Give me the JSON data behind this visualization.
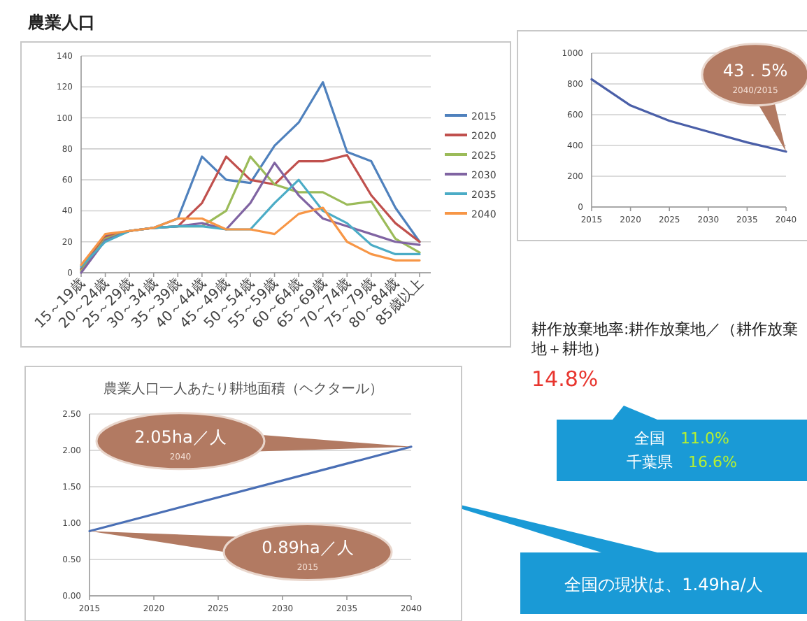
{
  "chart_data": [
    {
      "type": "line",
      "title": "農業人口",
      "categories": [
        "15～19歳",
        "20～24歳",
        "25～29歳",
        "30～34歳",
        "35～39歳",
        "40～44歳",
        "45～49歳",
        "50～54歳",
        "55～59歳",
        "60～64歳",
        "65～69歳",
        "70～74歳",
        "75～79歳",
        "80～84歳",
        "85歳以上"
      ],
      "series": [
        {
          "name": "2015",
          "color": "#4f81bd",
          "values": [
            3,
            24,
            27,
            29,
            35,
            75,
            60,
            58,
            82,
            97,
            123,
            78,
            72,
            42,
            20
          ]
        },
        {
          "name": "2020",
          "color": "#c0504d",
          "values": [
            2,
            23,
            27,
            29,
            30,
            45,
            75,
            60,
            57,
            72,
            72,
            76,
            50,
            32,
            20
          ]
        },
        {
          "name": "2025",
          "color": "#9bbb59",
          "values": [
            1,
            22,
            27,
            29,
            30,
            30,
            40,
            75,
            57,
            52,
            52,
            44,
            46,
            22,
            13
          ]
        },
        {
          "name": "2030",
          "color": "#8064a2",
          "values": [
            0,
            21,
            27,
            29,
            30,
            32,
            28,
            45,
            71,
            50,
            35,
            30,
            25,
            20,
            18
          ]
        },
        {
          "name": "2035",
          "color": "#4bacc6",
          "values": [
            4,
            20,
            27,
            29,
            30,
            30,
            28,
            28,
            45,
            60,
            40,
            32,
            18,
            12,
            12
          ]
        },
        {
          "name": "2040",
          "color": "#f79646",
          "values": [
            5,
            25,
            27,
            29,
            35,
            35,
            28,
            28,
            25,
            38,
            42,
            20,
            12,
            8,
            8
          ]
        }
      ],
      "ylim": [
        0,
        140
      ],
      "yticks": [
        0,
        20,
        40,
        60,
        80,
        100,
        120,
        140
      ],
      "grid": "y",
      "legend": "right"
    },
    {
      "type": "line",
      "x": [
        2015,
        2020,
        2025,
        2030,
        2035,
        2040
      ],
      "series": [
        {
          "color": "#4a5fa8",
          "values": [
            830,
            660,
            560,
            490,
            420,
            360
          ]
        }
      ],
      "xlim": [
        2015,
        2040
      ],
      "xticks": [
        2015,
        2020,
        2025,
        2030,
        2035,
        2040
      ],
      "ylim": [
        0,
        1000
      ],
      "yticks": [
        0,
        200,
        400,
        600,
        800,
        1000
      ],
      "grid": "y",
      "annotations": [
        "43．5%",
        "2040/2015"
      ]
    },
    {
      "type": "other",
      "annotations": [
        "耕作放棄地率:耕作放棄地／（耕作放棄地＋耕地）",
        "14.8%",
        "全国　11.0%",
        "千葉県　16.6%",
        "全国の現状は、1.49ha/人"
      ]
    },
    {
      "type": "line",
      "title": "農業人口一人あたり耕地面積（ヘクタール）",
      "x": [
        2015,
        2040
      ],
      "series": [
        {
          "color": "#4a6fb5",
          "values": [
            0.89,
            2.05
          ]
        }
      ],
      "xlim": [
        2015,
        2040
      ],
      "xticks": [
        2015,
        2020,
        2025,
        2030,
        2035,
        2040
      ],
      "ylim": [
        0,
        2.5
      ],
      "yticks": [
        {
          "value": 0,
          "label": "0.00"
        },
        {
          "value": 0.5,
          "label": "0.50"
        },
        {
          "value": 1,
          "label": "1.00"
        },
        {
          "value": 1.5,
          "label": "1.50"
        },
        {
          "value": 2,
          "label": "2.00"
        },
        {
          "value": 2.5,
          "label": "2.50"
        }
      ],
      "grid": "y",
      "annotations": [
        "2.05ha／人",
        "2040",
        "0.89ha／人",
        "2015"
      ]
    }
  ]
}
